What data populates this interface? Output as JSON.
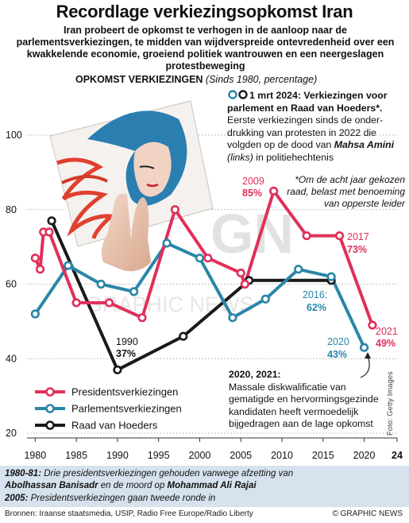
{
  "title": "Recordlage verkiezingsopkomst Iran",
  "subtitle": "Iran probeert de opkomst te verhogen in de aanloop naar de parlementsverkiezingen, te midden van wijdverspreide ontevredenheid over een kwakkelende economie, groeiend politiek wantrouwen en een neergeslagen protestbeweging",
  "chart_heading": {
    "main": "OPKOMST VERKIEZINGEN",
    "sub": "(Sinds 1980, percentage)"
  },
  "annotation_top": {
    "head": "1 mrt 2024: Verkiezingen voor parlement en Raad van Hoeders*.",
    "body_before": "Eerste verkiezingen sinds de onder-drukking van protesten in 2022 die volgden op de dood van ",
    "name": "Mahsa Amini",
    "links": "(links)",
    "body_after": " in politiehechtenis"
  },
  "footnote": "*Om de acht jaar gekozen raad, belast met benoeming van opperste leider",
  "annotation_bottom": {
    "head": "2020, 2021:",
    "body": "Massale diskwalificatie van gematigde en hervormingsgezinde kandidaten heeft vermoedelijk bijgedragen aan de lage opkomst"
  },
  "photo_credit": "Foto: Getty Images",
  "labels": {
    "l2009": "2009",
    "v2009": "85%",
    "l2017": "2017",
    "v2017": "73%",
    "l2021": "2021",
    "v2021": "49%",
    "l2016": "2016:",
    "v2016": "62%",
    "l2020": "2020",
    "v2020": "43%",
    "l1990": "1990",
    "v1990": "37%"
  },
  "watermark": {
    "top": "GN",
    "bottom": "GRAPHIC NEWS"
  },
  "notes": [
    {
      "prefix": "1980-81:",
      "text1": " Drie presidentsverkiezingen gehouden vanwege afzetting van ",
      "b1": "Abolhassan Banisadr",
      "text2": " en de moord op ",
      "b2": "Mohammad Ali Rajai"
    },
    {
      "prefix": "2005:",
      "text1": " Presidentsverkiezingen gaan tweede ronde in"
    }
  ],
  "sources": "Bronnen: Iraanse staatsmedia, USIP, Radio Free Europe/Radio Liberty",
  "credit": "© GRAPHIC NEWS",
  "colors": {
    "president": "#e0305a",
    "parliament": "#2a86a8",
    "council": "#1a1a1a",
    "grid": "#999999",
    "notes_bg": "#d6e3ee"
  },
  "chart_data": {
    "type": "line",
    "ylim": [
      20,
      100
    ],
    "xlim": [
      1979,
      2024
    ],
    "yticks": [
      20,
      40,
      60,
      80,
      100
    ],
    "xticks": [
      "1980",
      "1985",
      "1990",
      "1995",
      "2000",
      "2005",
      "2010",
      "2015",
      "2020",
      "24"
    ],
    "xtick_values": [
      1980,
      1985,
      1990,
      1995,
      2000,
      2005,
      2010,
      2015,
      2020,
      2024
    ],
    "series": [
      {
        "name": "Presidentsverkiezingen",
        "points": [
          [
            1980,
            67
          ],
          [
            1980.6,
            64
          ],
          [
            1981,
            74
          ],
          [
            1981.7,
            74
          ],
          [
            1985,
            55
          ],
          [
            1989,
            55
          ],
          [
            1993,
            51
          ],
          [
            1997,
            80
          ],
          [
            2001,
            67
          ],
          [
            2005,
            63
          ],
          [
            2005.5,
            60
          ],
          [
            2009,
            85
          ],
          [
            2013,
            73
          ],
          [
            2017,
            73
          ],
          [
            2021,
            49
          ]
        ]
      },
      {
        "name": "Parlementsverkiezingen",
        "points": [
          [
            1980,
            52
          ],
          [
            1984,
            65
          ],
          [
            1988,
            60
          ],
          [
            1992,
            58
          ],
          [
            1996,
            71
          ],
          [
            2000,
            67
          ],
          [
            2004,
            51
          ],
          [
            2008,
            56
          ],
          [
            2012,
            64
          ],
          [
            2016,
            62
          ],
          [
            2020,
            43
          ]
        ]
      },
      {
        "name": "Raad van Hoeders",
        "points": [
          [
            1982,
            77
          ],
          [
            1990,
            37
          ],
          [
            1998,
            46
          ],
          [
            2006,
            61
          ],
          [
            2016,
            61
          ]
        ]
      }
    ],
    "legend": [
      "Presidentsverkiezingen",
      "Parlementsverkiezingen",
      "Raad van Hoeders"
    ]
  }
}
